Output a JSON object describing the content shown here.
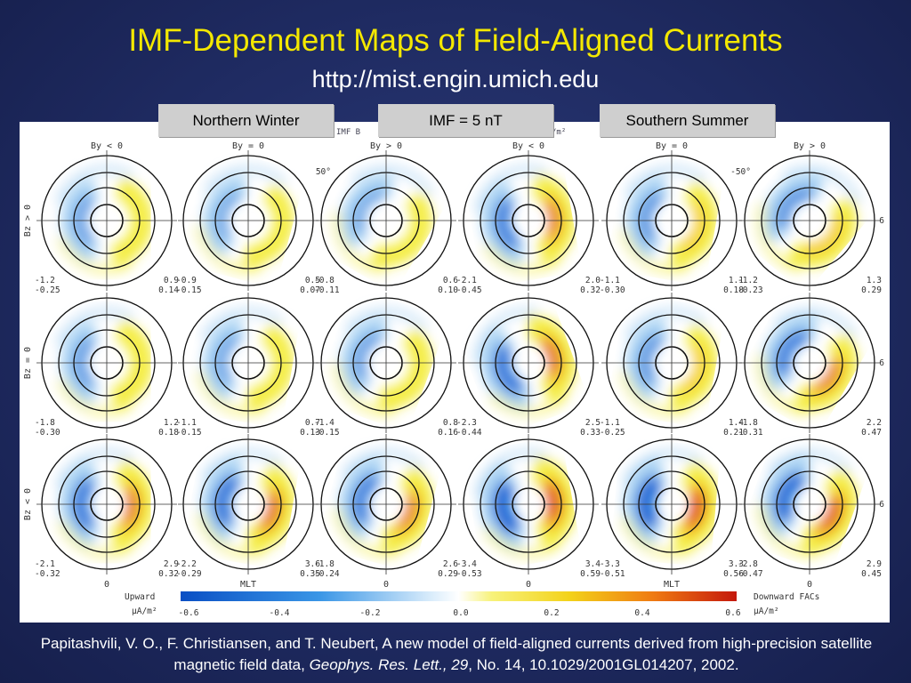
{
  "slide": {
    "title": "IMF-Dependent Maps of Field-Aligned Currents",
    "subtitle": "http://mist.engin.umich.edu",
    "labels": {
      "left": "Northern Winter",
      "middle": "IMF = 5 nT",
      "right": "Southern Summer"
    },
    "caption": {
      "part1": "Papitashvili, V. O., F. Christiansen, and T. Neubert, A new model of field-aligned currents derived from high-precision satellite magnetic field data, ",
      "journal": "Geophys. Res. Lett., 29",
      "part2": ", No. 14, 10.1029/2001GL014207, 2002."
    }
  },
  "figure": {
    "header_partial": "IMF B",
    "header_unit": "/m²",
    "column_headers": [
      "By < 0",
      "By = 0",
      "By > 0",
      "By < 0",
      "By = 0",
      "By > 0"
    ],
    "row_labels": [
      "Bz > 0",
      "Bz = 0",
      "Bz < 0"
    ],
    "lat_labels": [
      "50°",
      "-50°"
    ],
    "mlt_label": "6",
    "bottom_labels": [
      "0",
      "MLT",
      "0",
      "0",
      "MLT",
      "0"
    ],
    "colors": {
      "blue_strong": "#0a5fd4",
      "blue_light": "#9fcdf2",
      "yellow": "#f3ec3a",
      "orange": "#f39a18",
      "red": "#d8200e"
    },
    "panels": [
      {
        "row": 0,
        "col": 0,
        "left": [
          "-1.2",
          "-0.25"
        ],
        "right": [
          "0.9",
          "0.14"
        ],
        "intensity": 0.35,
        "rot": 0
      },
      {
        "row": 0,
        "col": 1,
        "left": [
          "-0.9",
          "-0.15"
        ],
        "right": [
          "0.5",
          "0.07"
        ],
        "intensity": 0.25,
        "rot": 15
      },
      {
        "row": 0,
        "col": 2,
        "left": [
          "-0.8",
          "-0.11"
        ],
        "right": [
          "0.6",
          "0.10"
        ],
        "intensity": 0.25,
        "rot": 30
      },
      {
        "row": 0,
        "col": 3,
        "left": [
          "-2.1",
          "-0.45"
        ],
        "right": [
          "2.0",
          "0.32"
        ],
        "intensity": 0.7,
        "rot": -10
      },
      {
        "row": 0,
        "col": 4,
        "left": [
          "-1.1",
          "-0.30"
        ],
        "right": [
          "1.1",
          "0.18"
        ],
        "intensity": 0.45,
        "rot": 10
      },
      {
        "row": 0,
        "col": 5,
        "left": [
          "-1.2",
          "-0.23"
        ],
        "right": [
          "1.3",
          "0.29"
        ],
        "intensity": 0.5,
        "rot": 40
      },
      {
        "row": 1,
        "col": 0,
        "left": [
          "-1.8",
          "-0.30"
        ],
        "right": [
          "1.2",
          "0.18"
        ],
        "intensity": 0.4,
        "rot": 0
      },
      {
        "row": 1,
        "col": 1,
        "left": [
          "-1.1",
          "-0.15"
        ],
        "right": [
          "0.7",
          "0.13"
        ],
        "intensity": 0.3,
        "rot": 10
      },
      {
        "row": 1,
        "col": 2,
        "left": [
          "-1.4",
          "-0.15"
        ],
        "right": [
          "0.8",
          "0.16"
        ],
        "intensity": 0.35,
        "rot": 20
      },
      {
        "row": 1,
        "col": 3,
        "left": [
          "-2.3",
          "-0.44"
        ],
        "right": [
          "2.5",
          "0.33"
        ],
        "intensity": 0.8,
        "rot": -20
      },
      {
        "row": 1,
        "col": 4,
        "left": [
          "-1.1",
          "-0.25"
        ],
        "right": [
          "1.4",
          "0.21"
        ],
        "intensity": 0.45,
        "rot": 10
      },
      {
        "row": 1,
        "col": 5,
        "left": [
          "-1.8",
          "-0.31"
        ],
        "right": [
          "2.2",
          "0.47"
        ],
        "intensity": 0.7,
        "rot": 30
      },
      {
        "row": 2,
        "col": 0,
        "left": [
          "-2.1",
          "-0.32"
        ],
        "right": [
          "2.9",
          "0.32"
        ],
        "intensity": 0.75,
        "rot": 0
      },
      {
        "row": 2,
        "col": 1,
        "left": [
          "-2.2",
          "-0.29"
        ],
        "right": [
          "3.6",
          "0.35"
        ],
        "intensity": 0.8,
        "rot": 10
      },
      {
        "row": 2,
        "col": 2,
        "left": [
          "-1.8",
          "-0.24"
        ],
        "right": [
          "2.6",
          "0.29"
        ],
        "intensity": 0.7,
        "rot": 15
      },
      {
        "row": 2,
        "col": 3,
        "left": [
          "-3.4",
          "-0.53"
        ],
        "right": [
          "3.4",
          "0.59"
        ],
        "intensity": 1.0,
        "rot": -10
      },
      {
        "row": 2,
        "col": 4,
        "left": [
          "-3.3",
          "-0.51"
        ],
        "right": [
          "3.3",
          "0.56"
        ],
        "intensity": 1.0,
        "rot": 5
      },
      {
        "row": 2,
        "col": 5,
        "left": [
          "-2.8",
          "-0.47"
        ],
        "right": [
          "2.9",
          "0.45"
        ],
        "intensity": 0.9,
        "rot": 20
      }
    ],
    "colorbar": {
      "left_label": [
        "Upward",
        "μA/m²"
      ],
      "right_label": [
        "Downward FACs",
        "μA/m²"
      ],
      "ticks": [
        "-0.6",
        "-0.4",
        "-0.2",
        "0.0",
        "0.2",
        "0.4",
        "0.6"
      ]
    }
  }
}
